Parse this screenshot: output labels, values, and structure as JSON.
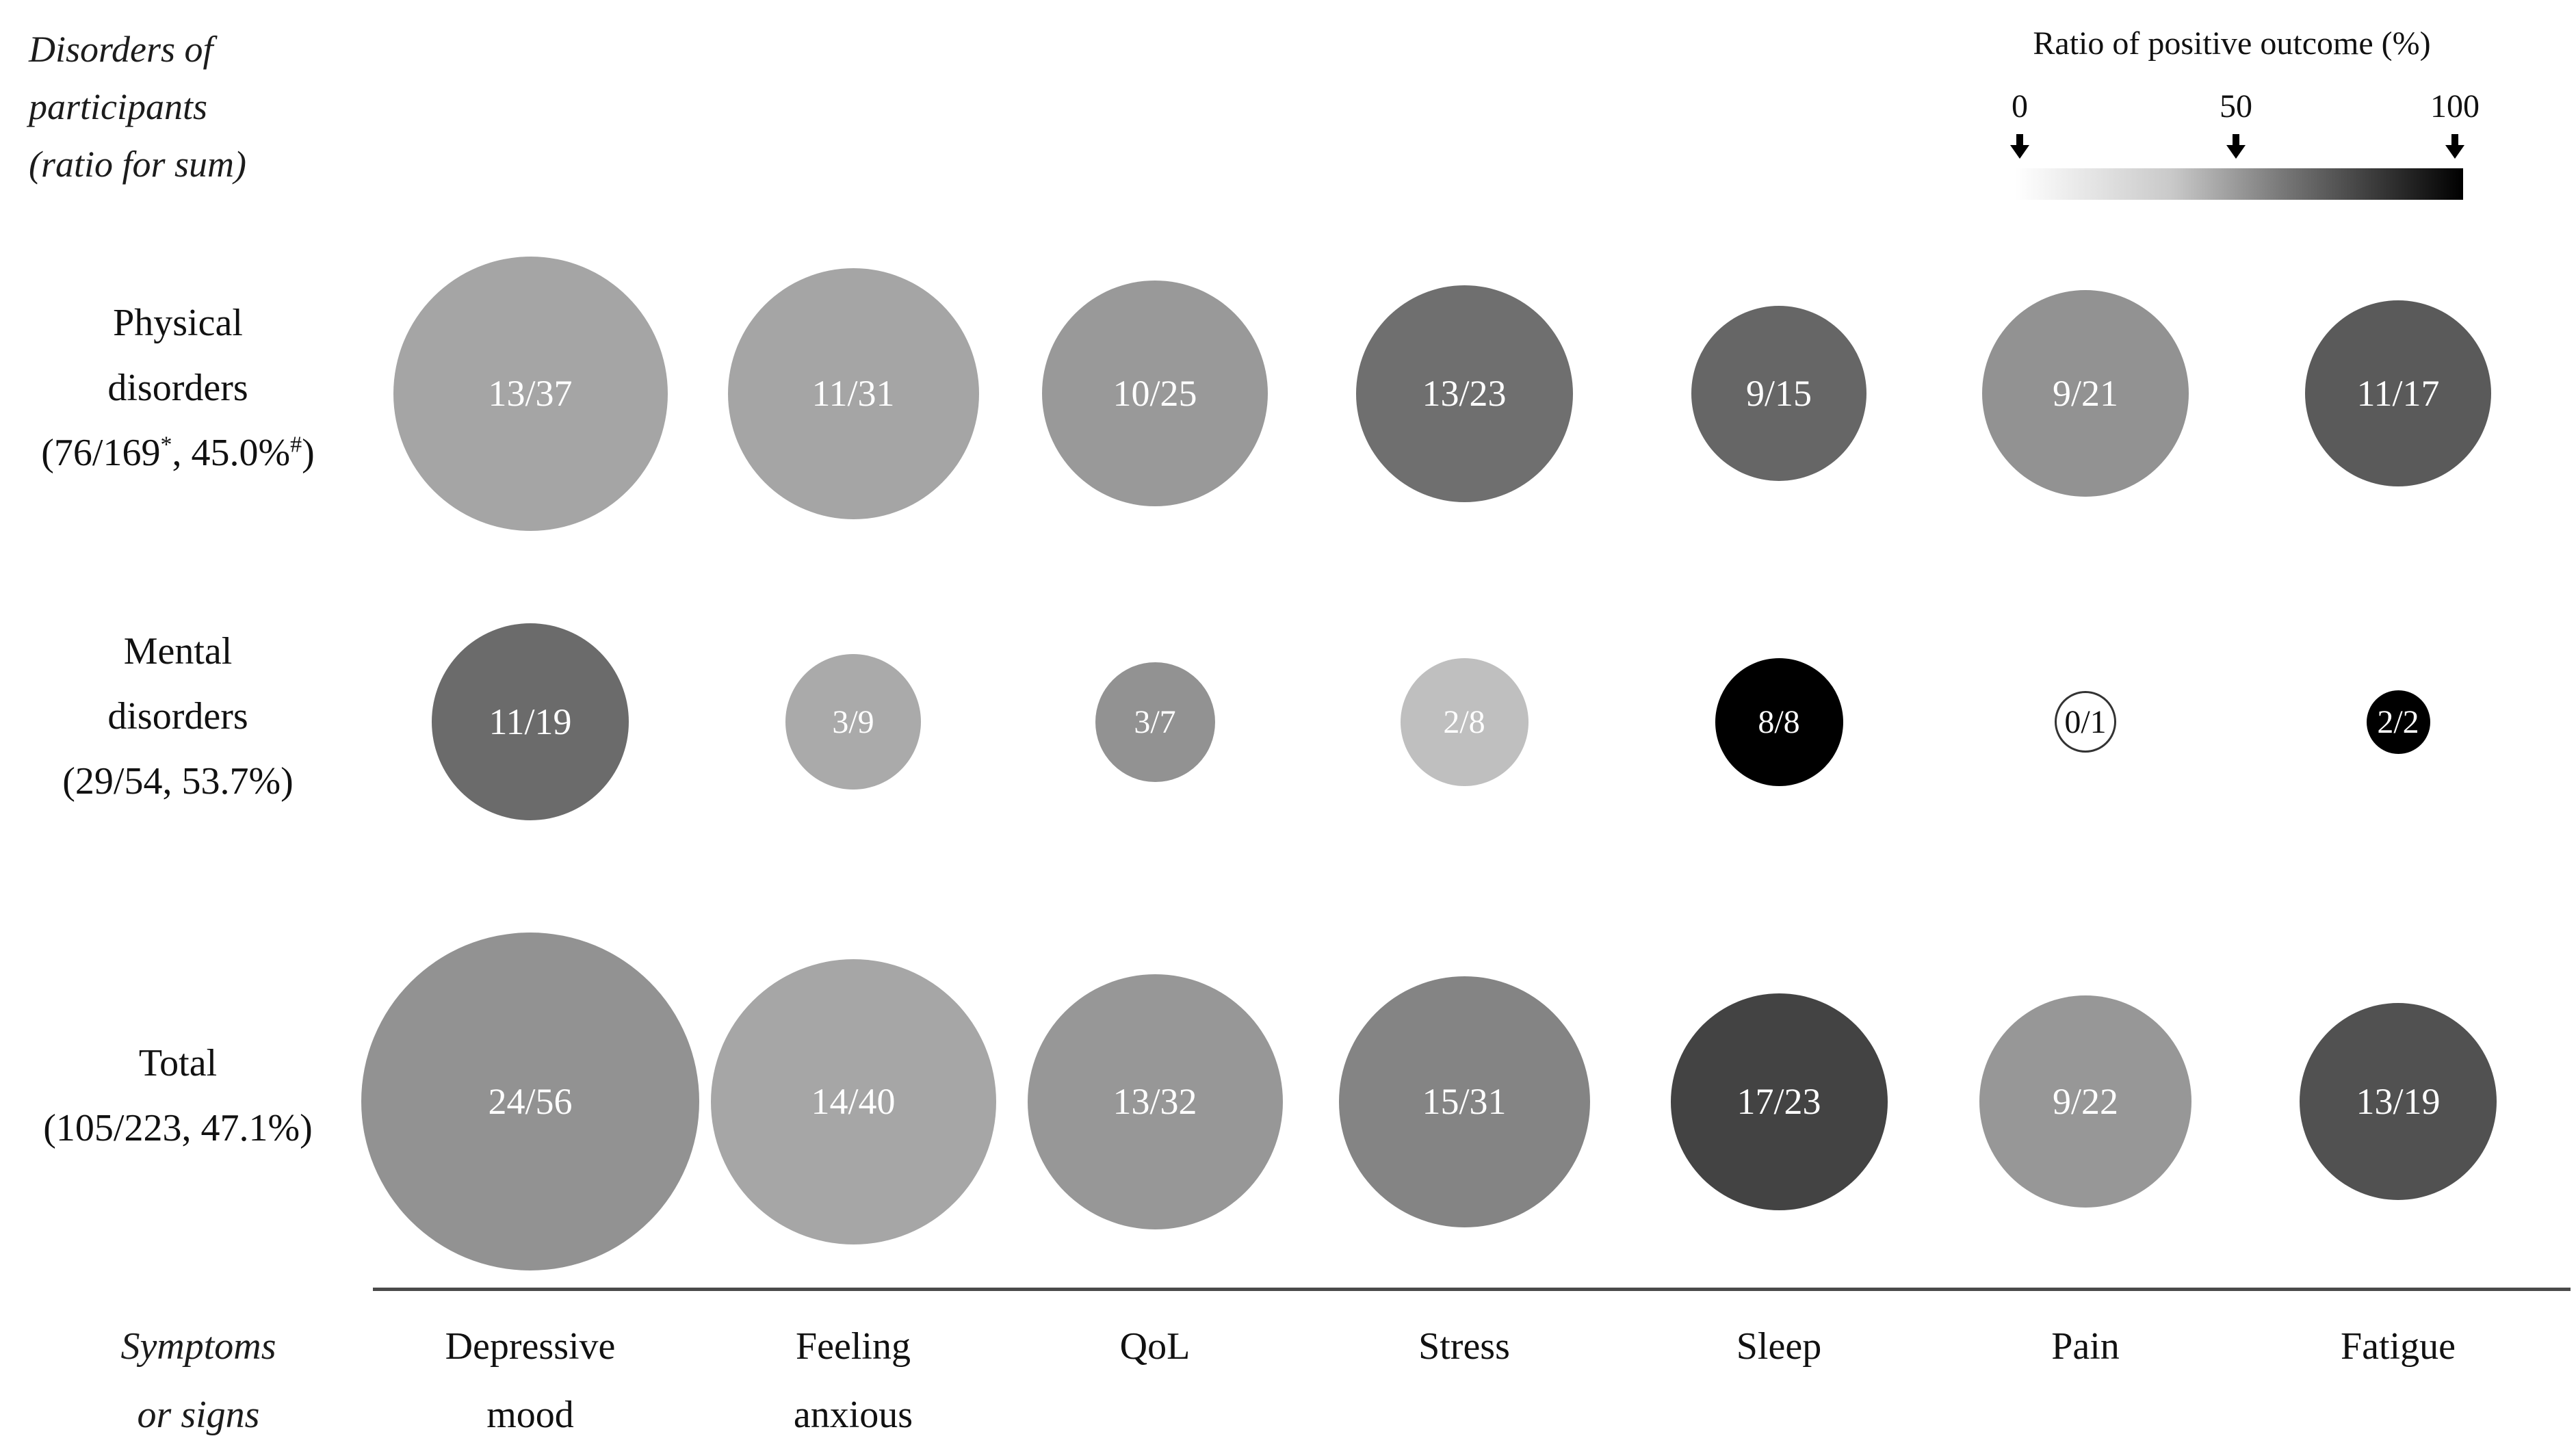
{
  "corner_label": {
    "line1": "Disorders of",
    "line2": "participants",
    "line3": "(ratio for sum)"
  },
  "legend": {
    "title": "Ratio of positive outcome (%)",
    "tick_0": "0",
    "tick_50": "50",
    "tick_100": "100",
    "gradient_from": "#ffffff",
    "gradient_to": "#000000"
  },
  "axis_label": {
    "line1": "Symptoms",
    "line2": "or signs"
  },
  "colors": {
    "axis_line": "#4a4a4a",
    "label_text": "#111111",
    "bubble_text_light": "#ffffff",
    "bubble_text_dark": "#111111",
    "zero_bubble_outline": "#333333"
  },
  "chart_data": {
    "type": "bubble-matrix",
    "title": "Ratio of positive outcome (%)",
    "size_rule": "bubble area proportional to total participants (sum)",
    "color_rule": "grayscale fill encodes positive/total ratio: 0% = white, 50% = mid gray, 100% = black",
    "legend_range": [
      0,
      50,
      100
    ],
    "columns": [
      {
        "key": "depressive-mood",
        "label": "Depressive mood",
        "lines": [
          "Depressive",
          "mood"
        ]
      },
      {
        "key": "feeling-anxious",
        "label": "Feeling anxious",
        "lines": [
          "Feeling",
          "anxious"
        ]
      },
      {
        "key": "qol",
        "label": "QoL",
        "lines": [
          "QoL"
        ]
      },
      {
        "key": "stress",
        "label": "Stress",
        "lines": [
          "Stress"
        ]
      },
      {
        "key": "sleep",
        "label": "Sleep",
        "lines": [
          "Sleep"
        ]
      },
      {
        "key": "pain",
        "label": "Pain",
        "lines": [
          "Pain"
        ]
      },
      {
        "key": "fatigue",
        "label": "Fatigue",
        "lines": [
          "Fatigue"
        ]
      }
    ],
    "rows": [
      {
        "key": "physical-disorders",
        "label_lines": [
          "Physical",
          "disorders"
        ],
        "sublabel": "(76/169*, 45.0%#)",
        "sublabel_parts": [
          {
            "t": "(76/169"
          },
          {
            "t": "*",
            "sup": true
          },
          {
            "t": ", 45.0%"
          },
          {
            "t": "#",
            "sup": true
          },
          {
            "t": ")"
          }
        ],
        "cells": [
          {
            "label": "13/37",
            "positive": 13,
            "total": 37
          },
          {
            "label": "11/31",
            "positive": 11,
            "total": 31
          },
          {
            "label": "10/25",
            "positive": 10,
            "total": 25
          },
          {
            "label": "13/23",
            "positive": 13,
            "total": 23
          },
          {
            "label": "9/15",
            "positive": 9,
            "total": 15
          },
          {
            "label": "9/21",
            "positive": 9,
            "total": 21
          },
          {
            "label": "11/17",
            "positive": 11,
            "total": 17
          }
        ]
      },
      {
        "key": "mental-disorders",
        "label_lines": [
          "Mental",
          "disorders"
        ],
        "sublabel": "(29/54, 53.7%)",
        "sublabel_parts": [
          {
            "t": "(29/54, 53.7%)"
          }
        ],
        "cells": [
          {
            "label": "11/19",
            "positive": 11,
            "total": 19
          },
          {
            "label": "3/9",
            "positive": 3,
            "total": 9
          },
          {
            "label": "3/7",
            "positive": 3,
            "total": 7
          },
          {
            "label": "2/8",
            "positive": 2,
            "total": 8
          },
          {
            "label": "8/8",
            "positive": 8,
            "total": 8
          },
          {
            "label": "0/1",
            "positive": 0,
            "total": 1
          },
          {
            "label": "2/2",
            "positive": 2,
            "total": 2
          }
        ]
      },
      {
        "key": "total",
        "label_lines": [
          "Total"
        ],
        "sublabel": "(105/223, 47.1%)",
        "sublabel_parts": [
          {
            "t": "(105/223, 47.1%)"
          }
        ],
        "cells": [
          {
            "label": "24/56",
            "positive": 24,
            "total": 56
          },
          {
            "label": "14/40",
            "positive": 14,
            "total": 40
          },
          {
            "label": "13/32",
            "positive": 13,
            "total": 32
          },
          {
            "label": "15/31",
            "positive": 15,
            "total": 31
          },
          {
            "label": "17/23",
            "positive": 17,
            "total": 23
          },
          {
            "label": "9/22",
            "positive": 9,
            "total": 22
          },
          {
            "label": "13/19",
            "positive": 13,
            "total": 19
          }
        ]
      }
    ]
  }
}
